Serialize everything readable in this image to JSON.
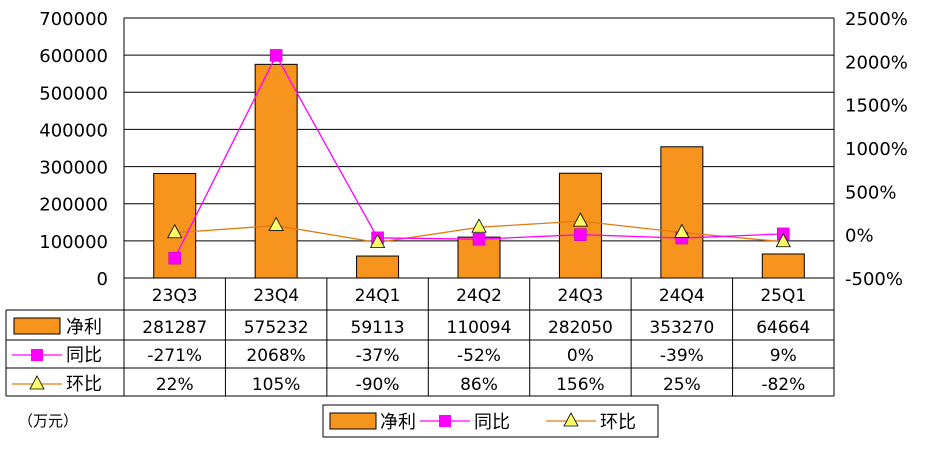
{
  "chart_data": {
    "type": "bar",
    "categories": [
      "23Q3",
      "23Q4",
      "24Q1",
      "24Q2",
      "24Q3",
      "24Q4",
      "25Q1"
    ],
    "series": [
      {
        "name": "净利",
        "kind": "bar",
        "axis": "left",
        "values": [
          281287,
          575232,
          59113,
          110094,
          282050,
          353270,
          64664
        ],
        "color": "#F7941D"
      },
      {
        "name": "同比",
        "kind": "line",
        "axis": "right",
        "values": [
          -271,
          2068,
          -37,
          -52,
          0,
          -39,
          9
        ],
        "labels": [
          "-271%",
          "2068%",
          "-37%",
          "-52%",
          "0%",
          "-39%",
          "9%"
        ],
        "color": "#FF00FF"
      },
      {
        "name": "环比",
        "kind": "line",
        "axis": "right",
        "values": [
          22,
          105,
          -90,
          86,
          156,
          25,
          -82
        ],
        "labels": [
          "22%",
          "105%",
          "-90%",
          "86%",
          "156%",
          "25%",
          "-82%"
        ],
        "color": "#E07B10"
      }
    ],
    "y_left": {
      "ylim": [
        0,
        700000
      ],
      "ticks": [
        "0",
        "100000",
        "200000",
        "300000",
        "400000",
        "500000",
        "600000",
        "700000"
      ]
    },
    "y_right": {
      "ylim": [
        -500,
        2500
      ],
      "ticks": [
        "-500%",
        "0%",
        "500%",
        "1000%",
        "1500%",
        "2000%",
        "2500%"
      ]
    },
    "unit_note": "（万元）",
    "grid": true,
    "legend": "bottom",
    "data_table": true
  }
}
